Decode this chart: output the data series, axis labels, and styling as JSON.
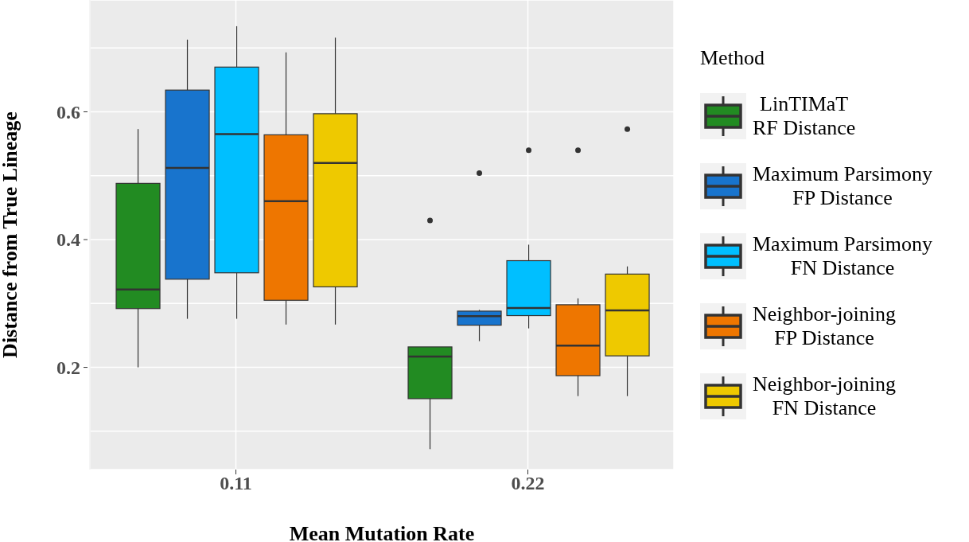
{
  "chart_data": {
    "type": "box",
    "xlabel": "Mean Mutation Rate",
    "ylabel": "Distance from True Lineage",
    "legend_title": "Method",
    "categories": [
      "0.11",
      "0.22"
    ],
    "ylim": [
      0.04,
      0.775
    ],
    "yticks": [
      {
        "value": 0.1,
        "label": null
      },
      0.2,
      {
        "value": 0.3,
        "label": null
      },
      0.4,
      {
        "value": 0.5,
        "label": null
      },
      0.6,
      {
        "value": 0.7,
        "label": null
      }
    ],
    "grid": true,
    "legend": "right",
    "series": [
      {
        "name": "LinTIMaT\nRF Distance",
        "color": "#228b22",
        "boxes": [
          {
            "low": 0.2,
            "q1": 0.292,
            "median": 0.322,
            "q3": 0.488,
            "high": 0.573
          },
          {
            "low": 0.072,
            "q1": 0.151,
            "median": 0.217,
            "q3": 0.232,
            "high": 0.232,
            "outliers": [
              0.43
            ]
          }
        ]
      },
      {
        "name": "Maximum Parsimony\nFP Distance",
        "color": "#1874cd",
        "boxes": [
          {
            "low": 0.276,
            "q1": 0.338,
            "median": 0.512,
            "q3": 0.634,
            "high": 0.713
          },
          {
            "low": 0.241,
            "q1": 0.266,
            "median": 0.28,
            "q3": 0.288,
            "high": 0.29,
            "outliers": [
              0.504
            ]
          }
        ]
      },
      {
        "name": "Maximum Parsimony\nFN Distance",
        "color": "#00bfff",
        "boxes": [
          {
            "low": 0.276,
            "q1": 0.348,
            "median": 0.565,
            "q3": 0.67,
            "high": 0.734
          },
          {
            "low": 0.261,
            "q1": 0.281,
            "median": 0.293,
            "q3": 0.367,
            "high": 0.392,
            "outliers": [
              0.54
            ]
          }
        ]
      },
      {
        "name": "Neighbor-joining\nFP Distance",
        "color": "#ee7600",
        "boxes": [
          {
            "low": 0.267,
            "q1": 0.305,
            "median": 0.46,
            "q3": 0.564,
            "high": 0.693
          },
          {
            "low": 0.155,
            "q1": 0.187,
            "median": 0.234,
            "q3": 0.298,
            "high": 0.308,
            "outliers": [
              0.54
            ]
          }
        ]
      },
      {
        "name": "Neighbor-joining\nFN Distance",
        "color": "#eec900",
        "boxes": [
          {
            "low": 0.267,
            "q1": 0.326,
            "median": 0.52,
            "q3": 0.597,
            "high": 0.716
          },
          {
            "low": 0.155,
            "q1": 0.218,
            "median": 0.289,
            "q3": 0.346,
            "high": 0.358,
            "outliers": [
              0.573
            ]
          }
        ]
      }
    ]
  }
}
